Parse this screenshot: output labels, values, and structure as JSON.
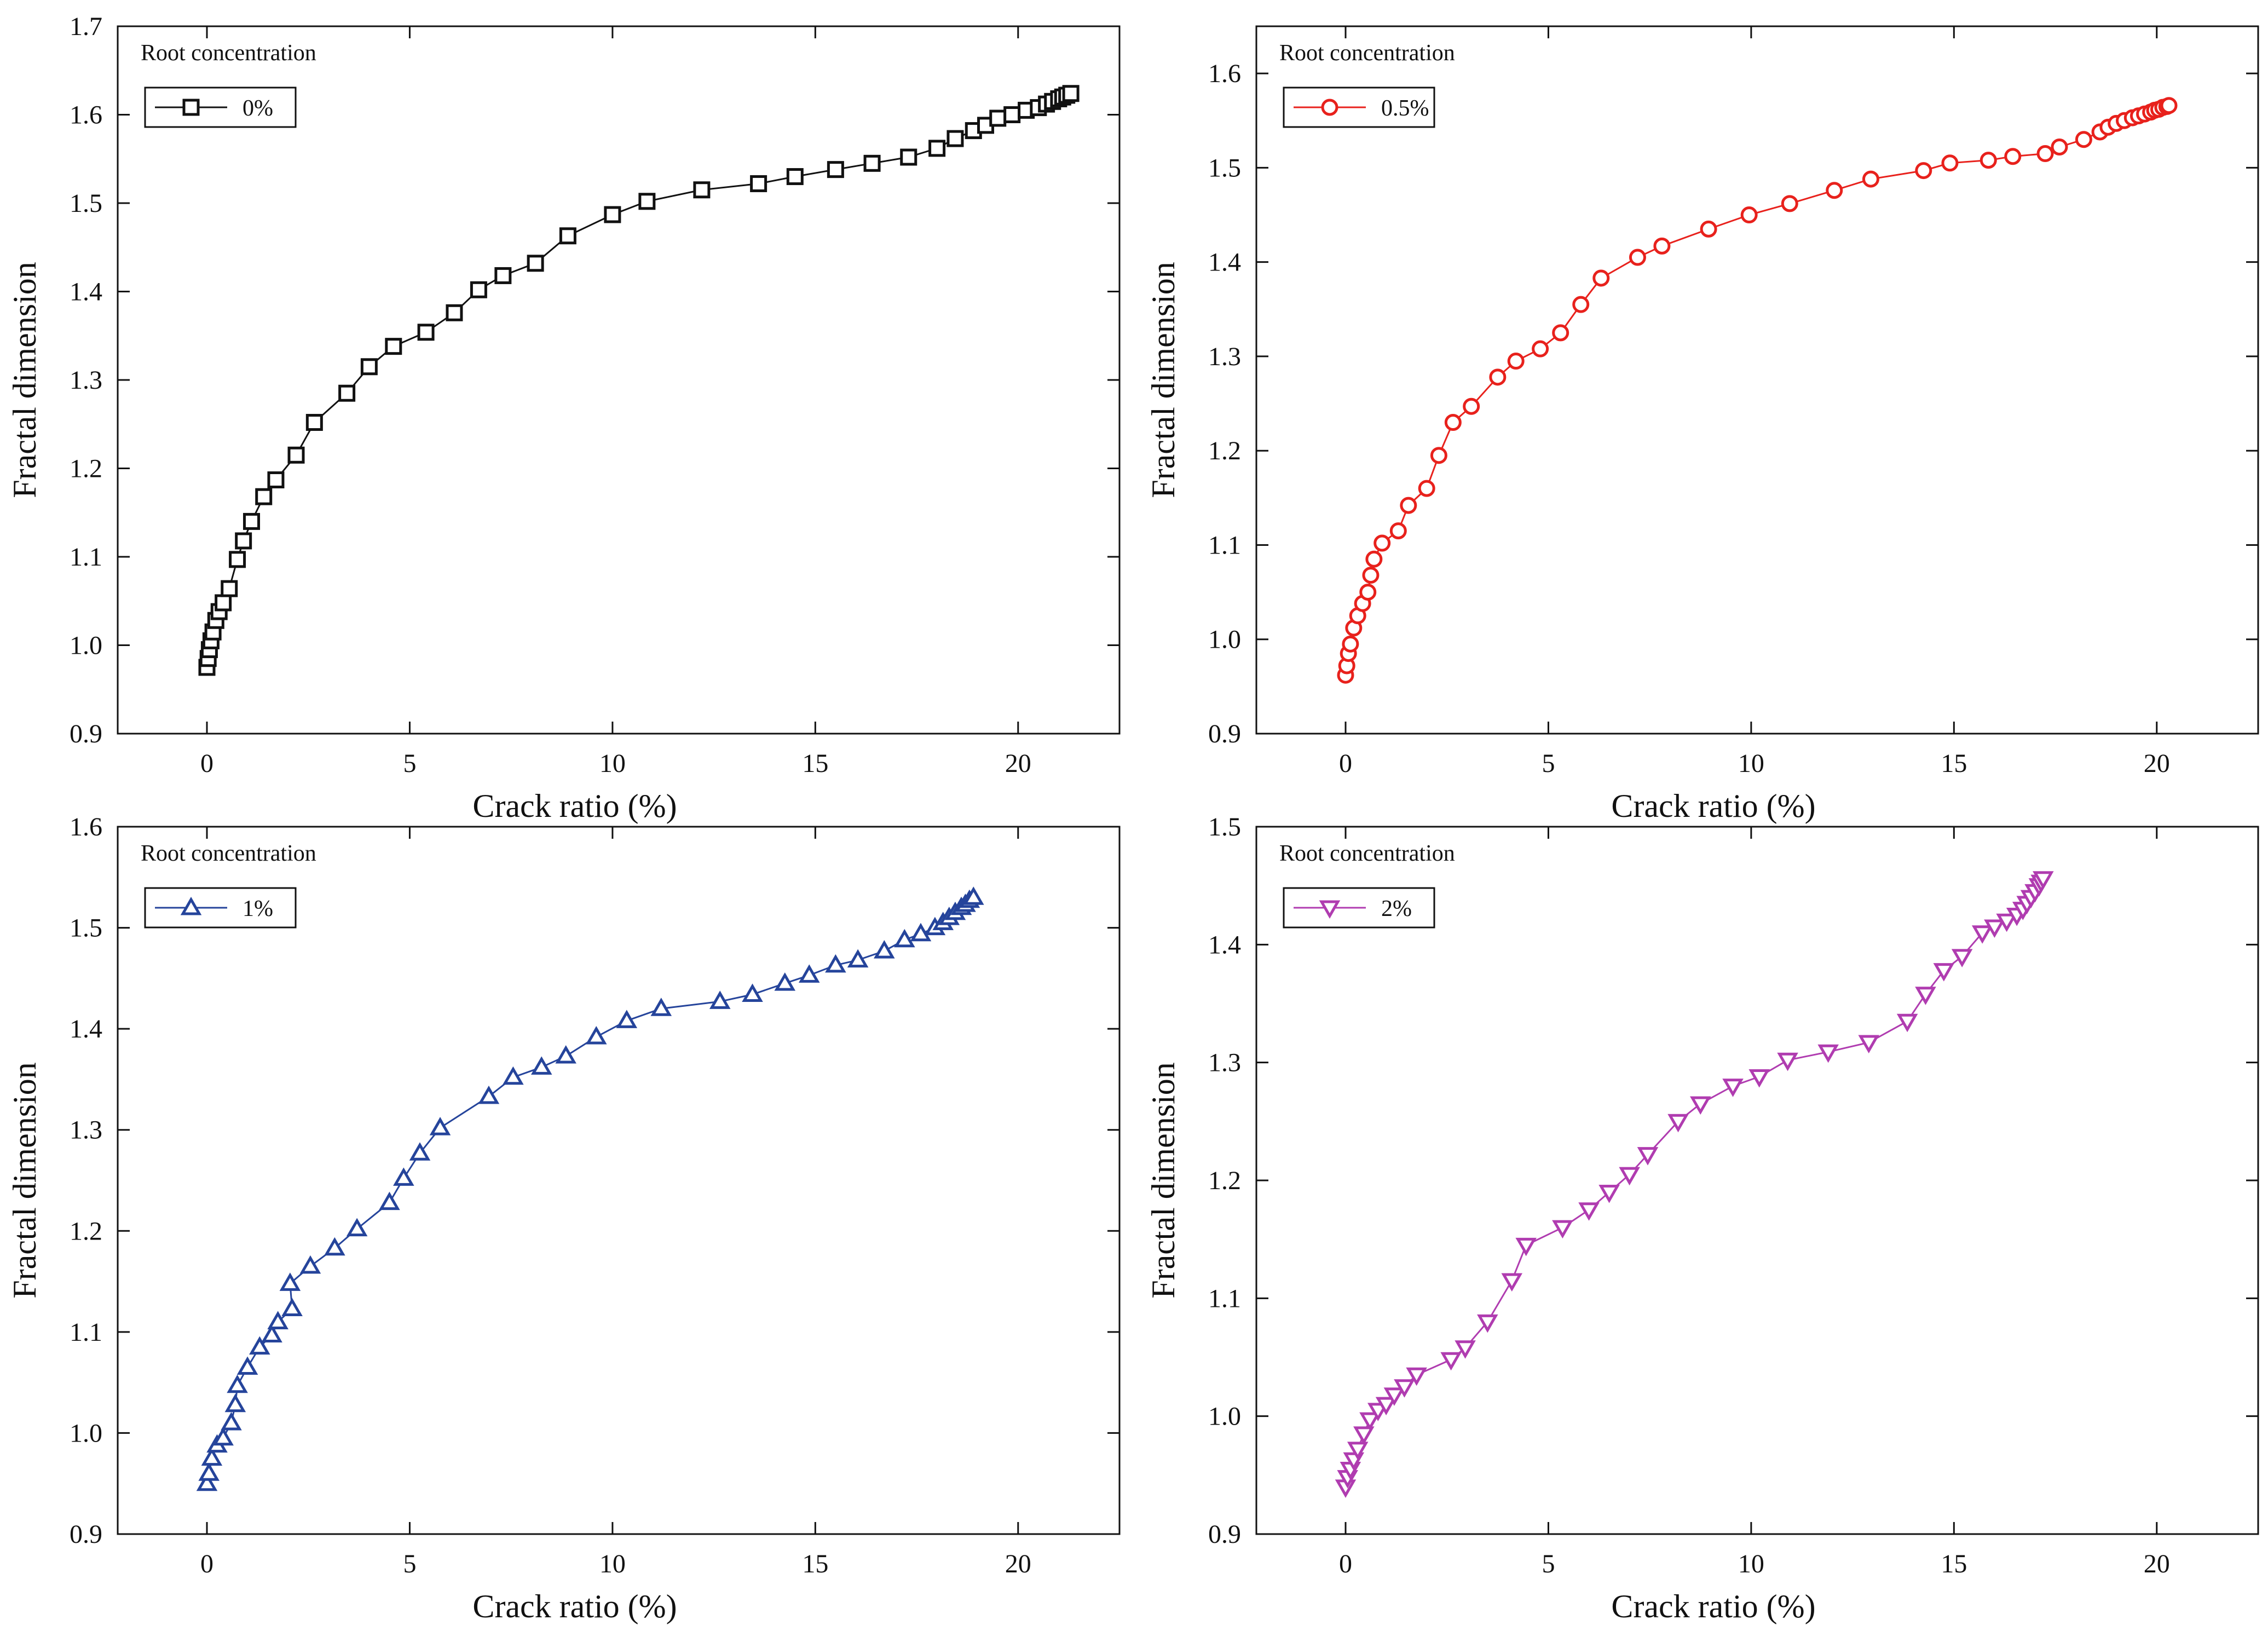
{
  "chart_data": [
    {
      "type": "line",
      "title": "",
      "xlabel": "Crack ratio (%)",
      "ylabel": "Fractal dimension",
      "xlim": [
        -2.2,
        22.5
      ],
      "ylim": [
        0.9,
        1.7
      ],
      "xticks": [
        0,
        5,
        10,
        15,
        20
      ],
      "yticks": [
        0.9,
        1.0,
        1.1,
        1.2,
        1.3,
        1.4,
        1.5,
        1.6,
        1.7
      ],
      "legend_title": "Root concentration",
      "legend_position": "top-left",
      "series": [
        {
          "name": "0%",
          "color": "#111111",
          "marker": "square",
          "x": [
            0.0,
            0.03,
            0.06,
            0.1,
            0.15,
            0.22,
            0.3,
            0.4,
            0.55,
            0.75,
            0.9,
            1.1,
            1.4,
            1.7,
            2.2,
            2.65,
            3.45,
            4.0,
            4.6,
            5.4,
            6.1,
            6.7,
            7.3,
            8.1,
            8.9,
            10.0,
            10.85,
            12.2,
            13.6,
            14.5,
            15.5,
            16.4,
            17.3,
            18.0,
            18.45,
            18.9,
            19.2,
            19.5,
            19.85,
            20.2,
            20.5,
            20.7,
            20.85,
            21.0,
            21.1,
            21.2,
            21.3
          ],
          "y": [
            0.975,
            0.985,
            0.995,
            1.005,
            1.015,
            1.028,
            1.038,
            1.048,
            1.064,
            1.097,
            1.118,
            1.14,
            1.168,
            1.187,
            1.215,
            1.252,
            1.285,
            1.315,
            1.338,
            1.354,
            1.376,
            1.402,
            1.418,
            1.432,
            1.463,
            1.487,
            1.502,
            1.515,
            1.522,
            1.53,
            1.538,
            1.545,
            1.552,
            1.562,
            1.573,
            1.582,
            1.588,
            1.596,
            1.6,
            1.605,
            1.608,
            1.612,
            1.615,
            1.618,
            1.62,
            1.622,
            1.624
          ]
        },
        {
          "name": "0.5%",
          "color": "#e8211c",
          "marker": "circle",
          "x": [
            0.0,
            0.03,
            0.07,
            0.12,
            0.2,
            0.3,
            0.42,
            0.55,
            0.62,
            0.7,
            0.9,
            1.3,
            1.55,
            2.0,
            2.3,
            2.65,
            3.1,
            3.75,
            4.2,
            4.8,
            5.3,
            5.8,
            6.3,
            7.2,
            7.8,
            8.95,
            9.95,
            10.95,
            12.05,
            12.95,
            14.25,
            14.9,
            15.85,
            16.45,
            17.25,
            17.6,
            18.2,
            18.6,
            18.8,
            19.0,
            19.2,
            19.4,
            19.55,
            19.7,
            19.85,
            19.95,
            20.05,
            20.15,
            20.25,
            20.3
          ],
          "y": [
            0.962,
            0.972,
            0.985,
            0.995,
            1.012,
            1.025,
            1.038,
            1.05,
            1.068,
            1.085,
            1.102,
            1.115,
            1.142,
            1.16,
            1.195,
            1.23,
            1.247,
            1.278,
            1.295,
            1.308,
            1.325,
            1.355,
            1.383,
            1.405,
            1.417,
            1.435,
            1.45,
            1.462,
            1.476,
            1.488,
            1.497,
            1.505,
            1.508,
            1.512,
            1.515,
            1.522,
            1.53,
            1.538,
            1.543,
            1.547,
            1.55,
            1.553,
            1.555,
            1.557,
            1.559,
            1.561,
            1.562,
            1.564,
            1.565,
            1.566
          ]
        },
        {
          "name": "1%",
          "color": "#25449b",
          "marker": "triangle-up",
          "x": [
            0.0,
            0.05,
            0.12,
            0.25,
            0.4,
            0.6,
            0.7,
            0.75,
            1.0,
            1.3,
            1.6,
            1.75,
            2.1,
            2.05,
            2.55,
            3.15,
            3.7,
            4.5,
            4.85,
            5.25,
            5.75,
            6.95,
            7.55,
            8.25,
            8.85,
            9.6,
            10.35,
            11.2,
            12.65,
            13.45,
            14.25,
            14.85,
            15.5,
            16.05,
            16.7,
            17.2,
            17.6,
            17.95,
            18.15,
            18.3,
            18.45,
            18.6,
            18.7,
            18.8,
            18.9
          ],
          "y": [
            0.95,
            0.96,
            0.975,
            0.988,
            0.995,
            1.01,
            1.028,
            1.047,
            1.065,
            1.085,
            1.097,
            1.11,
            1.123,
            1.148,
            1.165,
            1.183,
            1.202,
            1.228,
            1.252,
            1.277,
            1.302,
            1.333,
            1.352,
            1.362,
            1.373,
            1.392,
            1.408,
            1.42,
            1.427,
            1.434,
            1.445,
            1.453,
            1.463,
            1.468,
            1.477,
            1.488,
            1.494,
            1.5,
            1.505,
            1.51,
            1.515,
            1.52,
            1.523,
            1.527,
            1.53
          ]
        },
        {
          "name": "2%",
          "color": "#b03cb0",
          "marker": "triangle-down",
          "x": [
            0.0,
            0.05,
            0.12,
            0.2,
            0.3,
            0.45,
            0.6,
            0.8,
            1.0,
            1.2,
            1.45,
            1.75,
            2.6,
            2.95,
            3.5,
            4.1,
            4.45,
            5.35,
            6.0,
            6.5,
            7.0,
            7.45,
            8.2,
            8.75,
            9.55,
            10.2,
            10.9,
            11.9,
            12.9,
            13.85,
            14.3,
            14.75,
            15.2,
            15.7,
            16.0,
            16.3,
            16.55,
            16.7,
            16.8,
            16.9,
            17.0,
            17.1,
            17.15,
            17.2
          ],
          "y": [
            0.94,
            0.948,
            0.955,
            0.963,
            0.972,
            0.985,
            0.997,
            1.005,
            1.01,
            1.018,
            1.025,
            1.035,
            1.048,
            1.058,
            1.08,
            1.115,
            1.145,
            1.16,
            1.175,
            1.19,
            1.205,
            1.222,
            1.25,
            1.265,
            1.28,
            1.288,
            1.302,
            1.309,
            1.317,
            1.335,
            1.358,
            1.378,
            1.39,
            1.41,
            1.415,
            1.42,
            1.425,
            1.43,
            1.435,
            1.44,
            1.445,
            1.45,
            1.453,
            1.456
          ]
        }
      ]
    }
  ],
  "panel_limits": [
    {
      "xlim": [
        -2.2,
        22.5
      ],
      "ylim": [
        0.9,
        1.7
      ],
      "yticks": [
        0.9,
        1.0,
        1.1,
        1.2,
        1.3,
        1.4,
        1.5,
        1.6,
        1.7
      ]
    },
    {
      "xlim": [
        -2.2,
        22.5
      ],
      "ylim": [
        0.9,
        1.65
      ],
      "yticks": [
        0.9,
        1.0,
        1.1,
        1.2,
        1.3,
        1.4,
        1.5,
        1.6
      ]
    },
    {
      "xlim": [
        -2.2,
        22.5
      ],
      "ylim": [
        0.9,
        1.6
      ],
      "yticks": [
        0.9,
        1.0,
        1.1,
        1.2,
        1.3,
        1.4,
        1.5,
        1.6
      ]
    },
    {
      "xlim": [
        -2.2,
        22.5
      ],
      "ylim": [
        0.9,
        1.5
      ],
      "yticks": [
        0.9,
        1.0,
        1.1,
        1.2,
        1.3,
        1.4,
        1.5
      ]
    }
  ]
}
